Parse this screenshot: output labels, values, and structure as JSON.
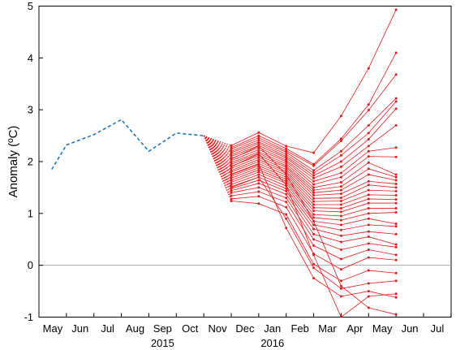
{
  "chart_data": {
    "type": "line",
    "title": "",
    "xlabel": "",
    "ylabel": "Anomaly (ºC)",
    "ylim": [
      -1,
      5
    ],
    "yticks": [
      "-1",
      "0",
      "1",
      "2",
      "3",
      "4",
      "5"
    ],
    "x_month_labels": [
      "May",
      "Jun",
      "Jul",
      "Aug",
      "Sep",
      "Oct",
      "Nov",
      "Dec",
      "Jan",
      "Feb",
      "Mar",
      "Apr",
      "May",
      "Jun",
      "Jul"
    ],
    "year_labels": [
      "2015",
      "2016"
    ],
    "grid": false,
    "zero_line": true,
    "colors": {
      "observed": "#1f77b4",
      "forecast": "#e41a1c",
      "zero_line": "#aaaaaa",
      "axis": "#000000"
    },
    "observed": {
      "style": "dashed",
      "x": [
        "2015-04-15",
        "2015-05",
        "2015-06",
        "2015-07",
        "2015-08",
        "2015-09",
        "2015-10"
      ],
      "y": [
        1.85,
        2.32,
        2.52,
        2.81,
        2.2,
        2.55,
        2.5
      ]
    },
    "forecast": {
      "origin": {
        "x": "2015-10",
        "y": 2.5
      },
      "months": [
        "2015-11",
        "2015-12",
        "2016-01",
        "2016-02",
        "2016-03",
        "2016-04",
        "2016-05"
      ],
      "members": [
        [
          2.31,
          2.56,
          2.3,
          2.17,
          2.88,
          3.8,
          4.93
        ],
        [
          2.27,
          2.5,
          2.25,
          1.95,
          2.44,
          3.1,
          4.1
        ],
        [
          2.24,
          2.46,
          2.21,
          1.92,
          2.4,
          2.99,
          3.68
        ],
        [
          2.2,
          2.42,
          2.18,
          1.83,
          2.2,
          2.7,
          3.22
        ],
        [
          2.17,
          2.38,
          2.14,
          1.78,
          2.12,
          2.55,
          3.16
        ],
        [
          2.13,
          2.35,
          2.1,
          1.73,
          2.0,
          2.43,
          3.02
        ],
        [
          2.1,
          2.31,
          2.07,
          1.68,
          1.9,
          2.3,
          2.7
        ],
        [
          2.06,
          2.27,
          2.03,
          1.62,
          1.78,
          2.2,
          2.27
        ],
        [
          2.02,
          2.23,
          2.0,
          1.56,
          1.7,
          2.1,
          2.09
        ],
        [
          1.98,
          2.19,
          1.96,
          1.5,
          1.6,
          1.98,
          1.75
        ],
        [
          1.95,
          2.16,
          1.92,
          1.45,
          1.52,
          1.86,
          1.7
        ],
        [
          1.91,
          2.12,
          1.89,
          1.4,
          1.45,
          1.75,
          1.64
        ],
        [
          1.87,
          2.08,
          1.85,
          1.35,
          1.38,
          1.62,
          1.57
        ],
        [
          1.83,
          2.04,
          1.81,
          1.29,
          1.3,
          1.55,
          1.5
        ],
        [
          1.8,
          2.0,
          1.78,
          1.23,
          1.24,
          1.45,
          1.43
        ],
        [
          1.76,
          1.96,
          1.74,
          1.17,
          1.17,
          1.36,
          1.35
        ],
        [
          1.72,
          1.92,
          1.7,
          1.11,
          1.1,
          1.28,
          1.27
        ],
        [
          1.68,
          1.88,
          1.66,
          1.05,
          1.03,
          1.2,
          1.2
        ],
        [
          1.64,
          1.84,
          1.62,
          0.98,
          0.95,
          1.1,
          1.1
        ],
        [
          1.6,
          1.8,
          1.58,
          0.92,
          0.87,
          1.0,
          1.02
        ],
        [
          1.56,
          1.75,
          1.53,
          0.85,
          0.78,
          0.9,
          0.8
        ],
        [
          1.52,
          1.7,
          1.48,
          0.78,
          0.68,
          0.78,
          0.75
        ],
        [
          1.48,
          1.64,
          1.43,
          0.7,
          0.57,
          0.65,
          0.6
        ],
        [
          1.44,
          1.58,
          1.37,
          0.6,
          0.45,
          0.55,
          0.4
        ],
        [
          1.4,
          1.5,
          1.3,
          0.5,
          0.3,
          0.42,
          0.35
        ],
        [
          1.34,
          1.42,
          1.22,
          0.38,
          0.12,
          0.3,
          0.2
        ],
        [
          1.28,
          1.33,
          1.12,
          0.22,
          -0.08,
          0.15,
          0.1
        ],
        [
          1.24,
          1.19,
          0.98,
          0.02,
          -0.3,
          -0.1,
          -0.15
        ],
        [
          1.5,
          1.7,
          0.9,
          -0.05,
          -0.45,
          -0.35,
          -0.3
        ],
        [
          1.75,
          1.95,
          0.72,
          -0.25,
          -0.6,
          -0.5,
          -0.62
        ],
        [
          2.05,
          2.3,
          1.75,
          0.85,
          -0.4,
          -0.82,
          -0.95
        ],
        [
          1.9,
          2.15,
          1.55,
          0.2,
          -1.0,
          -0.6,
          -0.55
        ]
      ]
    }
  }
}
